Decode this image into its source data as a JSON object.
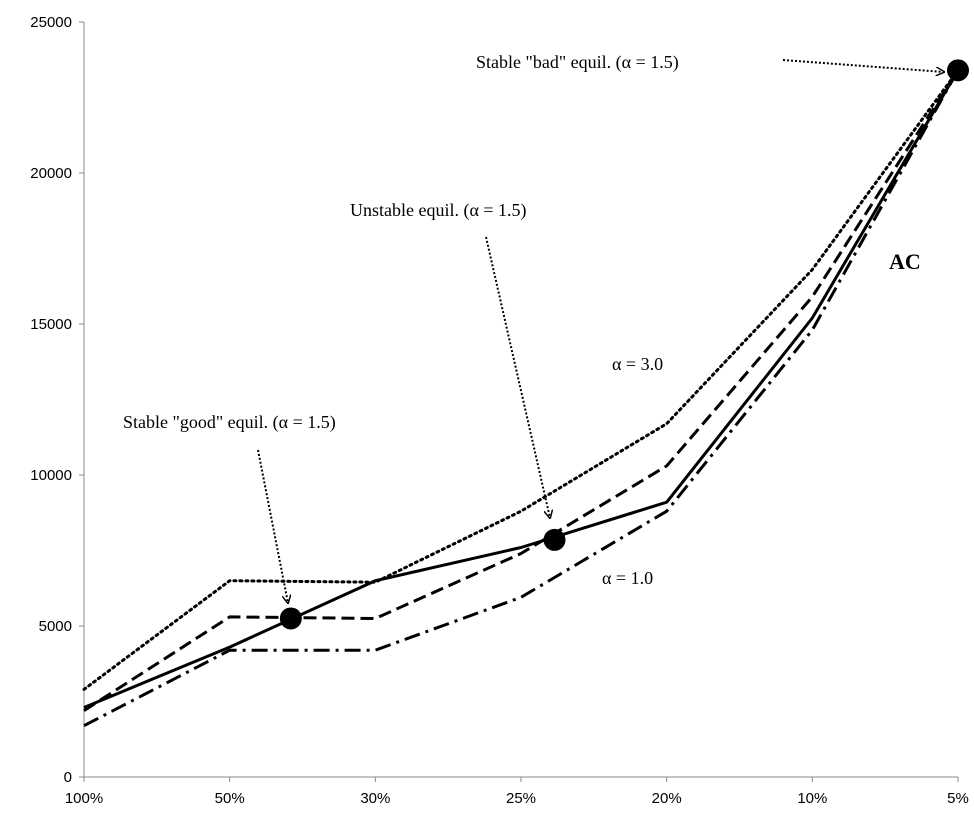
{
  "chart_data": {
    "type": "line",
    "categories": [
      "100%",
      "50%",
      "30%",
      "25%",
      "20%",
      "10%",
      "5%"
    ],
    "ylim": [
      0,
      25000
    ],
    "yticks": [
      "0",
      "5000",
      "10000",
      "15000",
      "20000",
      "25000"
    ],
    "grid": false,
    "series": [
      {
        "style": "dotted",
        "values": [
          2900,
          6500,
          6450,
          8800,
          11700,
          16800,
          23400
        ]
      },
      {
        "style": "dashed",
        "values": [
          2200,
          5300,
          5250,
          7400,
          10300,
          15900,
          23400
        ]
      },
      {
        "style": "solid",
        "values": [
          2300,
          4300,
          6500,
          7600,
          9100,
          15200,
          23400
        ]
      },
      {
        "style": "dash-dot",
        "values": [
          1700,
          4200,
          4200,
          5950,
          8800,
          14800,
          23400
        ]
      }
    ],
    "markers": [
      {
        "x": 1.42,
        "y": 5250
      },
      {
        "x": 3.23,
        "y": 7850
      },
      {
        "x": 6.0,
        "y": 23400
      }
    ],
    "labels": {
      "bad_equil": "Stable \"bad\" equil. (α = 1.5)",
      "unstable_equil": "Unstable equil. (α = 1.5)",
      "good_equil": "Stable \"good\" equil. (α = 1.5)",
      "alpha_high": "α = 3.0",
      "alpha_low": "α = 1.0",
      "curve_name": "AC"
    }
  }
}
